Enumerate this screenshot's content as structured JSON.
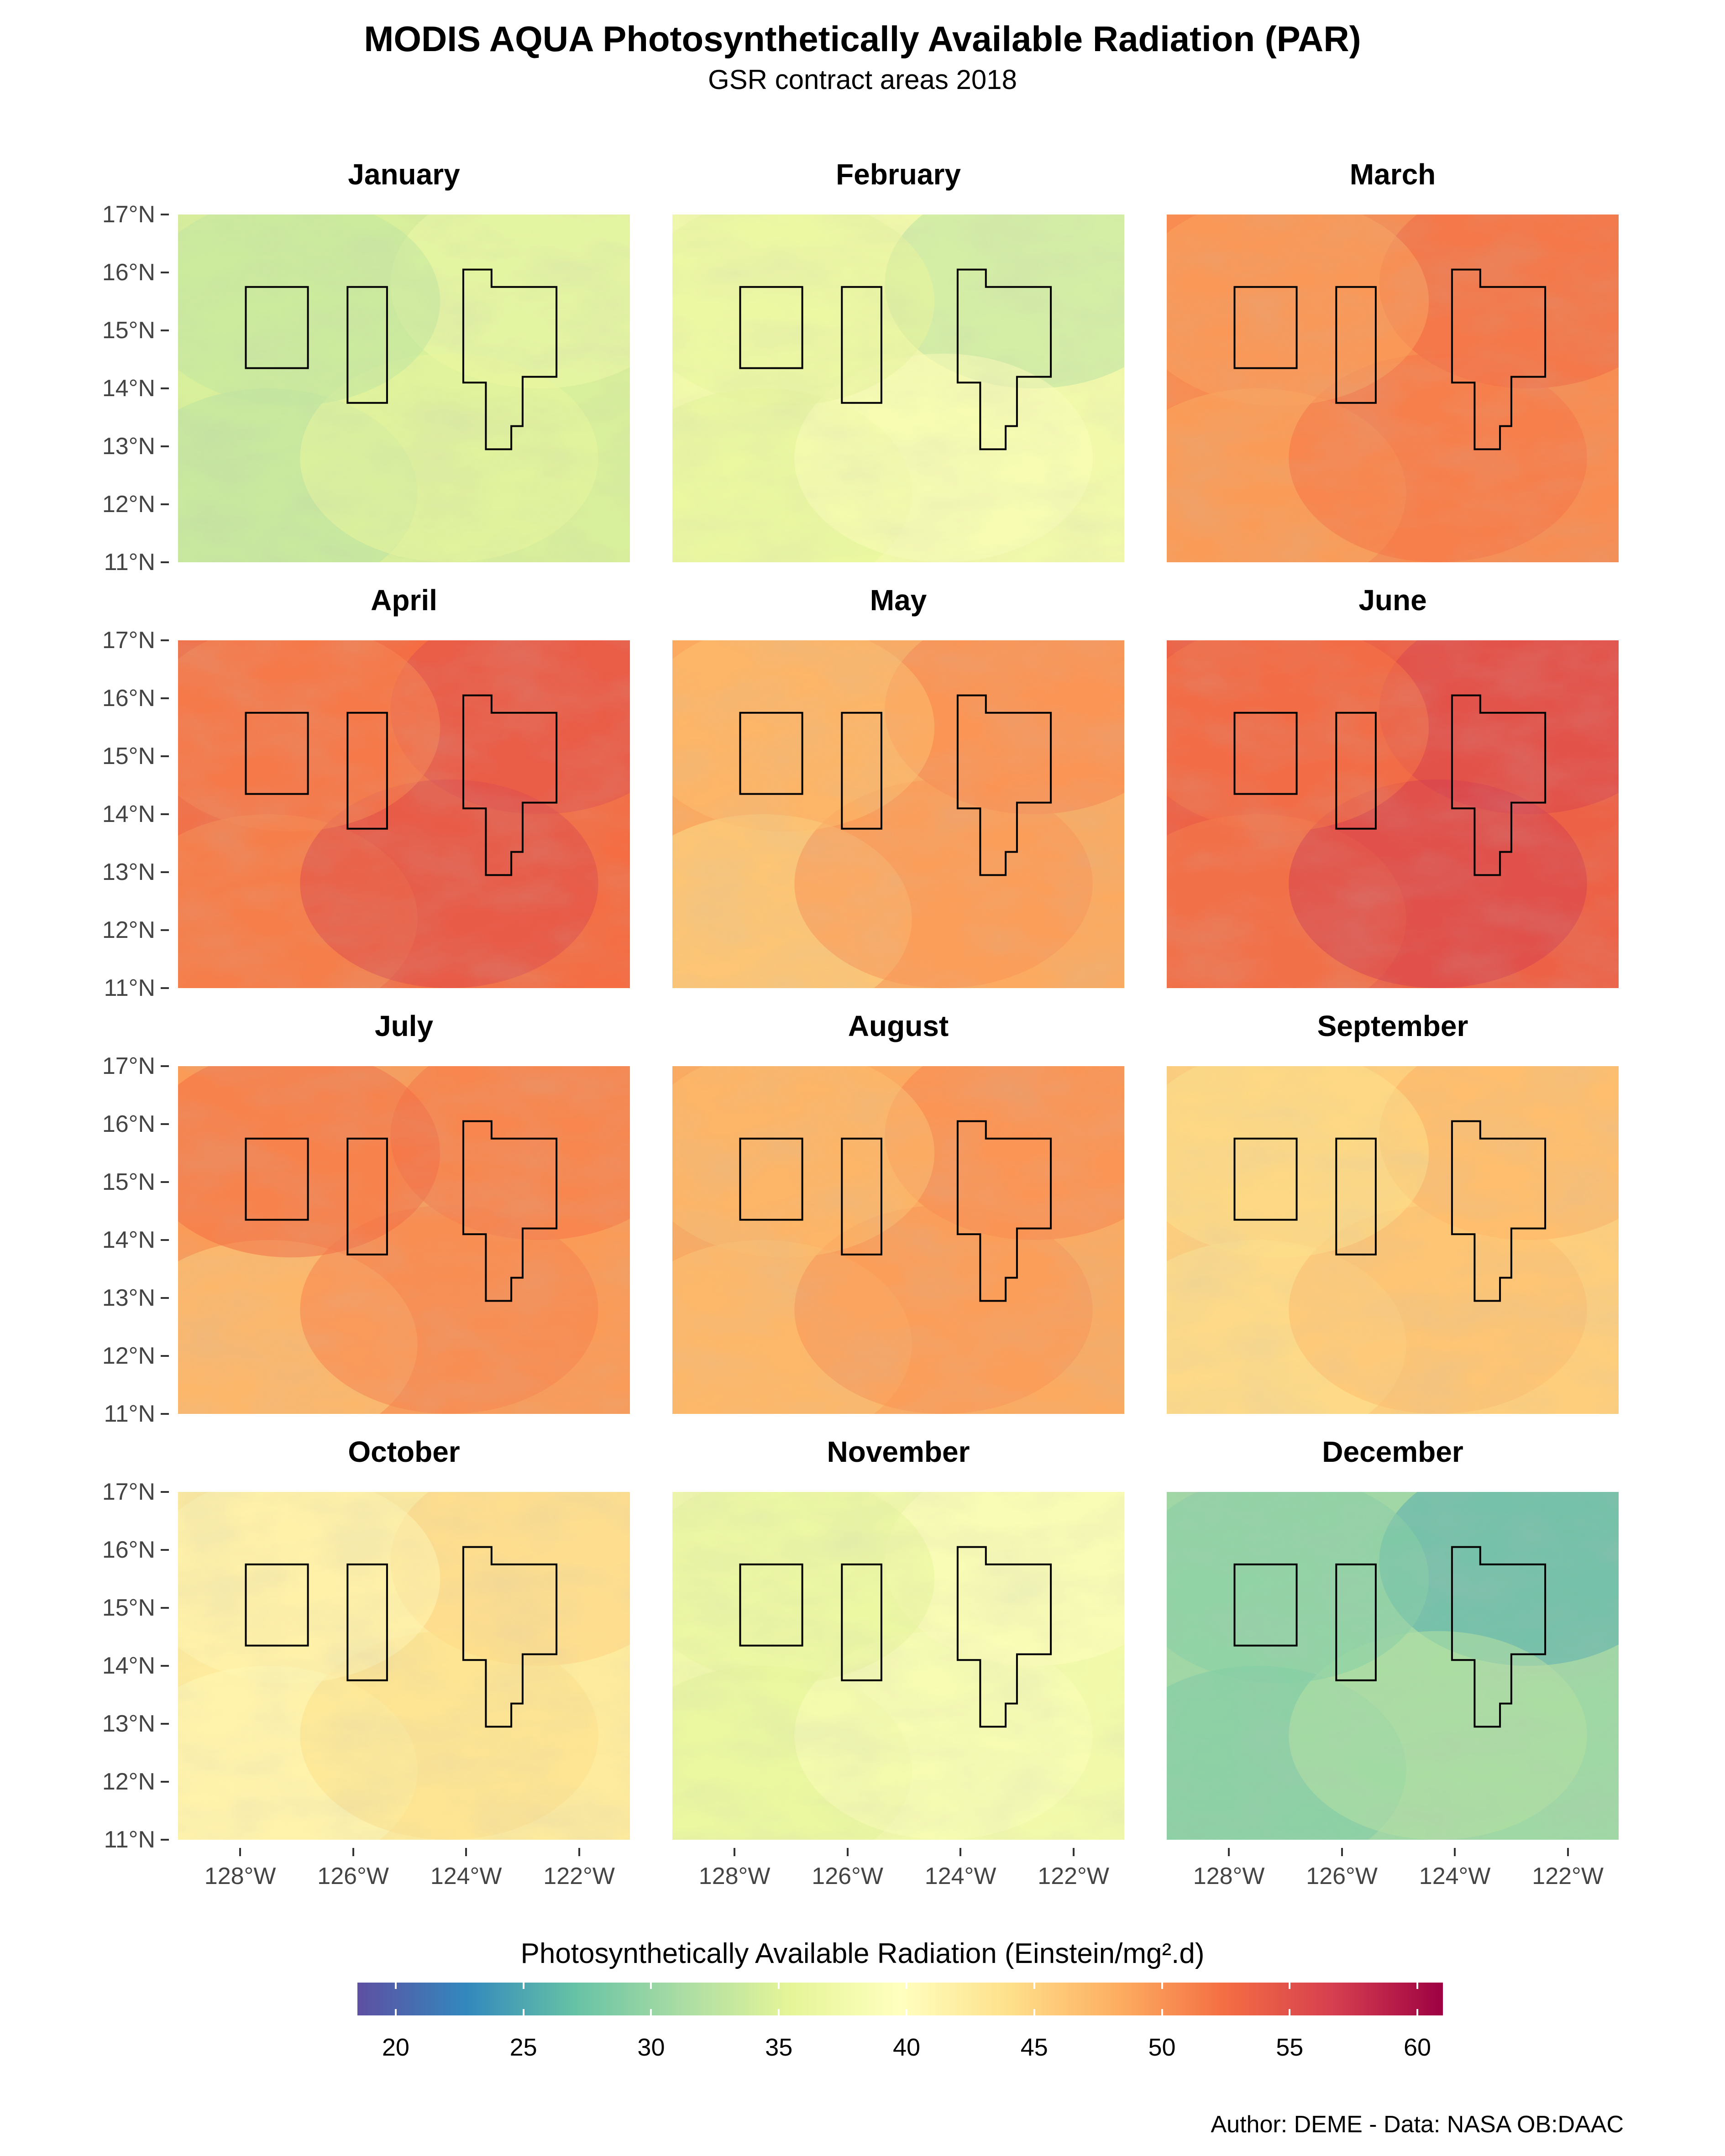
{
  "title": "MODIS AQUA Photosynthetically Available Radiation (PAR)",
  "subtitle": "GSR contract areas 2018",
  "credit": "Author: DEME - Data: NASA OB:DAAC",
  "legend": {
    "title": "Photosynthetically Available Radiation (Einstein/mg².d)",
    "palette": [
      "#5e4fa2",
      "#3288bd",
      "#66c2a5",
      "#abdda4",
      "#e6f598",
      "#ffffbf",
      "#fee08b",
      "#fdae61",
      "#f46d43",
      "#d53e4f",
      "#9e0142"
    ],
    "range": [
      18.5,
      61
    ],
    "ticks": [
      20,
      25,
      30,
      35,
      40,
      45,
      50,
      55,
      60
    ],
    "tick_labels": [
      "20",
      "25",
      "30",
      "35",
      "40",
      "45",
      "50",
      "55",
      "60"
    ]
  },
  "axes": {
    "lon_range": [
      -129.1,
      -121.1
    ],
    "lat_range": [
      11,
      17
    ],
    "y_ticks": [
      11,
      12,
      13,
      14,
      15,
      16,
      17
    ],
    "y_tick_labels": [
      "11°N",
      "12°N",
      "13°N",
      "14°N",
      "15°N",
      "16°N",
      "17°N"
    ],
    "x_ticks": [
      -128,
      -126,
      -124,
      -122
    ],
    "x_tick_labels": [
      "128°W",
      "126°W",
      "124°W",
      "122°W"
    ]
  },
  "contract_areas": [
    [
      [
        -127.9,
        14.35
      ],
      [
        -126.8,
        14.35
      ],
      [
        -126.8,
        15.75
      ],
      [
        -127.9,
        15.75
      ]
    ],
    [
      [
        -126.1,
        13.75
      ],
      [
        -125.4,
        13.75
      ],
      [
        -125.4,
        15.75
      ],
      [
        -126.1,
        15.75
      ]
    ],
    [
      [
        -124.05,
        16.05
      ],
      [
        -123.55,
        16.05
      ],
      [
        -123.55,
        15.75
      ],
      [
        -122.4,
        15.75
      ],
      [
        -122.4,
        14.2
      ],
      [
        -123.0,
        14.2
      ],
      [
        -123.0,
        13.35
      ],
      [
        -123.2,
        13.35
      ],
      [
        -123.2,
        12.95
      ],
      [
        -123.65,
        12.95
      ],
      [
        -123.65,
        14.1
      ],
      [
        -124.05,
        14.1
      ]
    ]
  ],
  "months": [
    {
      "name": "January",
      "mean_par": 34.5,
      "variation": "fine bluish-green mottling"
    },
    {
      "name": "February",
      "mean_par": 37.5,
      "variation": "blue-green in upper right"
    },
    {
      "name": "March",
      "mean_par": 50.5,
      "variation": "uniform orange"
    },
    {
      "name": "April",
      "mean_par": 52.5,
      "variation": "darker red toward the east and south"
    },
    {
      "name": "May",
      "mean_par": 48.5,
      "variation": "lighter patches in the south"
    },
    {
      "name": "June",
      "mean_par": 53.5,
      "variation": "darker red in the south-east"
    },
    {
      "name": "July",
      "mean_par": 49.5,
      "variation": "red in the north, lighter in the south"
    },
    {
      "name": "August",
      "mean_par": 48.5,
      "variation": "orange with light patches"
    },
    {
      "name": "September",
      "mean_par": 45.5,
      "variation": "light orange"
    },
    {
      "name": "October",
      "mean_par": 42.5,
      "variation": "light yellow-orange"
    },
    {
      "name": "November",
      "mean_par": 37.5,
      "variation": "light yellow-green"
    },
    {
      "name": "December",
      "mean_par": 30.5,
      "variation": "blue-green"
    }
  ]
}
